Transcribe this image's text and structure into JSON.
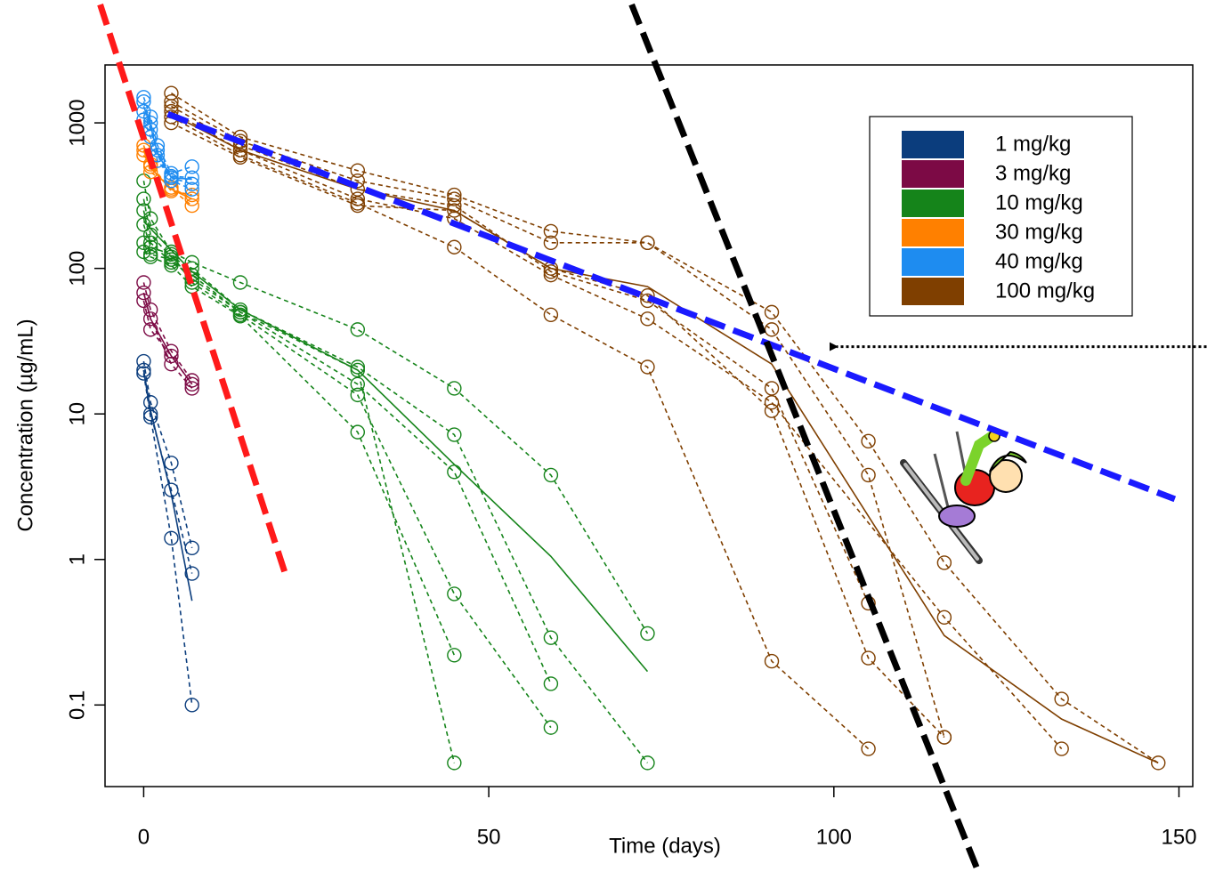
{
  "chart_data": {
    "type": "line",
    "x_label": "Time (days)",
    "y_label": "Concentration (µg/mL)",
    "xlim": [
      -5.6,
      152
    ],
    "ylim": [
      0.0275,
      2500
    ],
    "ylog": true,
    "xticks": [
      0,
      50,
      100,
      150
    ],
    "yticks": [
      0.1,
      1,
      10,
      100,
      1000
    ],
    "groups": [
      {
        "name": "1 mg/kg",
        "color": "#0b3d7d",
        "subjects": [
          {
            "x": [
              0,
              1,
              4,
              7
            ],
            "values": [
              23,
              12,
              4.6,
              1.2
            ]
          },
          {
            "x": [
              0,
              1,
              4,
              7
            ],
            "values": [
              20,
              10,
              3,
              0.8
            ]
          },
          {
            "x": [
              0,
              1,
              4,
              7
            ],
            "values": [
              19,
              9.5,
              1.4,
              0.1
            ]
          }
        ],
        "mean": {
          "x": [
            0,
            1,
            4,
            7
          ],
          "values": [
            20,
            10.5,
            2.8,
            0.52
          ]
        }
      },
      {
        "name": "3 mg/kg",
        "color": "#7c0a45",
        "subjects": [
          {
            "x": [
              0,
              1,
              4,
              7
            ],
            "values": [
              80,
              52,
              27,
              17
            ]
          },
          {
            "x": [
              0,
              1,
              4,
              7
            ],
            "values": [
              68,
              45,
              22,
              15
            ]
          },
          {
            "x": [
              0,
              1,
              4,
              7
            ],
            "values": [
              60,
              38,
              25,
              16
            ]
          }
        ],
        "mean": {
          "x": [
            0,
            1,
            4,
            7
          ],
          "values": [
            68,
            45,
            25,
            16
          ]
        }
      },
      {
        "name": "10 mg/kg",
        "color": "#15841a",
        "subjects": [
          {
            "x": [
              0,
              1,
              4,
              7,
              14,
              31,
              45,
              59,
              73
            ],
            "values": [
              400,
              220,
              130,
              110,
              80,
              38,
              15,
              3.8,
              0.31
            ]
          },
          {
            "x": [
              0,
              1,
              4,
              7,
              14,
              31,
              45,
              59,
              73
            ],
            "values": [
              300,
              170,
              120,
              100,
              52,
              21,
              7.2,
              0.29,
              0.04
            ]
          },
          {
            "x": [
              0,
              1,
              4,
              7,
              14,
              31,
              45,
              59
            ],
            "values": [
              250,
              150,
              110,
              90,
              50,
              16,
              4,
              0.14
            ]
          },
          {
            "x": [
              0,
              1,
              4,
              7,
              14,
              31,
              45,
              59
            ],
            "values": [
              200,
              140,
              125,
              80,
              48,
              13.5,
              0.58,
              0.07
            ]
          },
          {
            "x": [
              0,
              1,
              4,
              7,
              14,
              31,
              45
            ],
            "values": [
              130,
              120,
              105,
              75,
              47,
              7.5,
              0.22
            ]
          },
          {
            "x": [
              0,
              1,
              4,
              7,
              14,
              31,
              45
            ],
            "values": [
              150,
              125,
              115,
              85,
              50,
              20,
              0.04
            ]
          }
        ],
        "mean": {
          "x": [
            0,
            7,
            14,
            31,
            45,
            59,
            73
          ],
          "values": [
            210,
            95,
            52,
            20,
            4.5,
            1.05,
            0.17
          ]
        }
      },
      {
        "name": "30 mg/kg",
        "color": "#ff8000",
        "subjects": [
          {
            "x": [
              0,
              1,
              4,
              7
            ],
            "values": [
              700,
              500,
              350,
              270
            ]
          },
          {
            "x": [
              0,
              1,
              4,
              7
            ],
            "values": [
              650,
              460,
              360,
              300
            ]
          },
          {
            "x": [
              0,
              1,
              4,
              7
            ],
            "values": [
              600,
              520,
              340,
              320
            ]
          }
        ],
        "mean": {
          "x": [
            0,
            1,
            4,
            7
          ],
          "values": [
            650,
            490,
            350,
            300
          ]
        }
      },
      {
        "name": "40 mg/kg",
        "color": "#1e8cf0",
        "subjects": [
          {
            "x": [
              0,
              1,
              2,
              4,
              7
            ],
            "values": [
              1500,
              1100,
              700,
              450,
              500
            ]
          },
          {
            "x": [
              0,
              1,
              2,
              4,
              7
            ],
            "values": [
              1400,
              1000,
              650,
              430,
              420
            ]
          },
          {
            "x": [
              0,
              1,
              2,
              4,
              7
            ],
            "values": [
              1200,
              900,
              600,
              400,
              350
            ]
          },
          {
            "x": [
              0,
              1,
              2,
              4,
              7
            ],
            "values": [
              1050,
              800,
              550,
              420,
              380
            ]
          }
        ],
        "mean": {
          "x": [
            0,
            1,
            2,
            4,
            7
          ],
          "values": [
            1300,
            950,
            620,
            420,
            410
          ]
        }
      },
      {
        "name": "100 mg/kg",
        "color": "#7f3f00",
        "subjects": [
          {
            "x": [
              4,
              14,
              31,
              45,
              59,
              73,
              91,
              105,
              116,
              133,
              147
            ],
            "values": [
              1600,
              800,
              470,
              320,
              180,
              150,
              50,
              6.5,
              0.95,
              0.11,
              0.04
            ]
          },
          {
            "x": [
              4,
              14,
              31,
              45,
              59,
              73,
              91,
              105,
              116
            ],
            "values": [
              1400,
              750,
              400,
              300,
              150,
              150,
              38,
              3.8,
              0.06
            ]
          },
          {
            "x": [
              4,
              14,
              31,
              45,
              59,
              73,
              91,
              105
            ],
            "values": [
              1300,
              700,
              350,
              270,
              95,
              60,
              15,
              0.5
            ]
          },
          {
            "x": [
              4,
              14,
              31,
              45,
              59,
              73,
              91,
              116,
              133
            ],
            "values": [
              1200,
              650,
              300,
              220,
              90,
              45,
              12,
              0.4,
              0.05
            ]
          },
          {
            "x": [
              4,
              14,
              31,
              45,
              59,
              73,
              91,
              105
            ],
            "values": [
              1100,
              600,
              280,
              140,
              48,
              21,
              0.2,
              0.05
            ]
          },
          {
            "x": [
              4,
              14,
              31,
              45,
              59,
              73,
              91,
              105,
              116
            ],
            "values": [
              1000,
              580,
              270,
              250,
              100,
              65,
              10.5,
              0.21,
              0.06
            ]
          }
        ],
        "mean": {
          "x": [
            4,
            14,
            31,
            45,
            59,
            73,
            91,
            116,
            133,
            147
          ],
          "values": [
            1150,
            650,
            350,
            250,
            100,
            75,
            22,
            0.3,
            0.08,
            0.04
          ]
        }
      }
    ],
    "reference_lines": [
      {
        "color": "#ff1a1a",
        "x": [
          -6.3,
          20.5
        ],
        "values": [
          6500,
          0.8
        ]
      },
      {
        "color": "#1a1aff",
        "x": [
          3.5,
          149.4
        ],
        "values": [
          1150,
          2.6
        ]
      },
      {
        "color": "#000000",
        "x": [
          70.7,
          121
        ],
        "values": [
          6500,
          0.007
        ]
      }
    ],
    "arrow": {
      "x": [
        154,
        100.4
      ],
      "values": [
        29,
        29
      ]
    }
  }
}
